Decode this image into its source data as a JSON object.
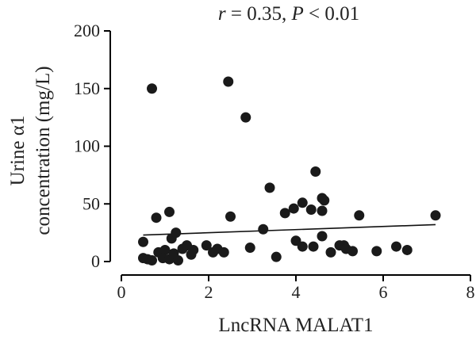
{
  "chart_data": {
    "type": "scatter",
    "annotation": {
      "r_symbol": "r",
      "r_text": " = 0.35, ",
      "p_symbol": "P",
      "p_text": " < 0.01"
    },
    "xlabel": "LncRNA MALAT1",
    "ylabel_line1": "Urine α1",
    "ylabel_line2": "concentration (mg/L)",
    "xlim": [
      0,
      8
    ],
    "ylim": [
      0,
      200
    ],
    "xticks": [
      0,
      2,
      4,
      6,
      8
    ],
    "yticks": [
      0,
      50,
      100,
      150,
      200
    ],
    "grid": false,
    "point_color": "#1a1a1a",
    "points": [
      [
        0.7,
        150
      ],
      [
        2.45,
        156
      ],
      [
        2.85,
        125
      ],
      [
        4.45,
        78
      ],
      [
        3.4,
        64
      ],
      [
        0.5,
        17
      ],
      [
        0.8,
        38
      ],
      [
        1.1,
        43
      ],
      [
        1.15,
        20
      ],
      [
        1.25,
        25
      ],
      [
        0.85,
        8
      ],
      [
        1.0,
        10
      ],
      [
        0.95,
        3
      ],
      [
        1.1,
        2
      ],
      [
        1.2,
        7
      ],
      [
        1.3,
        1
      ],
      [
        1.4,
        11
      ],
      [
        1.5,
        14
      ],
      [
        1.6,
        6
      ],
      [
        1.65,
        10
      ],
      [
        0.5,
        3
      ],
      [
        0.6,
        2
      ],
      [
        0.7,
        1
      ],
      [
        1.95,
        14
      ],
      [
        2.1,
        8
      ],
      [
        2.2,
        11
      ],
      [
        2.35,
        8
      ],
      [
        2.5,
        39
      ],
      [
        2.95,
        12
      ],
      [
        3.25,
        28
      ],
      [
        3.55,
        4
      ],
      [
        3.75,
        42
      ],
      [
        3.95,
        46
      ],
      [
        4.15,
        51
      ],
      [
        4.0,
        18
      ],
      [
        4.15,
        13
      ],
      [
        4.35,
        45
      ],
      [
        4.4,
        13
      ],
      [
        4.6,
        44
      ],
      [
        4.6,
        55
      ],
      [
        4.65,
        53
      ],
      [
        4.6,
        22
      ],
      [
        4.8,
        8
      ],
      [
        5.0,
        14
      ],
      [
        5.1,
        14
      ],
      [
        5.15,
        11
      ],
      [
        5.3,
        9
      ],
      [
        5.45,
        40
      ],
      [
        5.85,
        9
      ],
      [
        6.3,
        13
      ],
      [
        6.55,
        10
      ],
      [
        7.2,
        40
      ]
    ],
    "trendline": {
      "x": [
        0.5,
        7.2
      ],
      "y": [
        23,
        32
      ]
    }
  }
}
